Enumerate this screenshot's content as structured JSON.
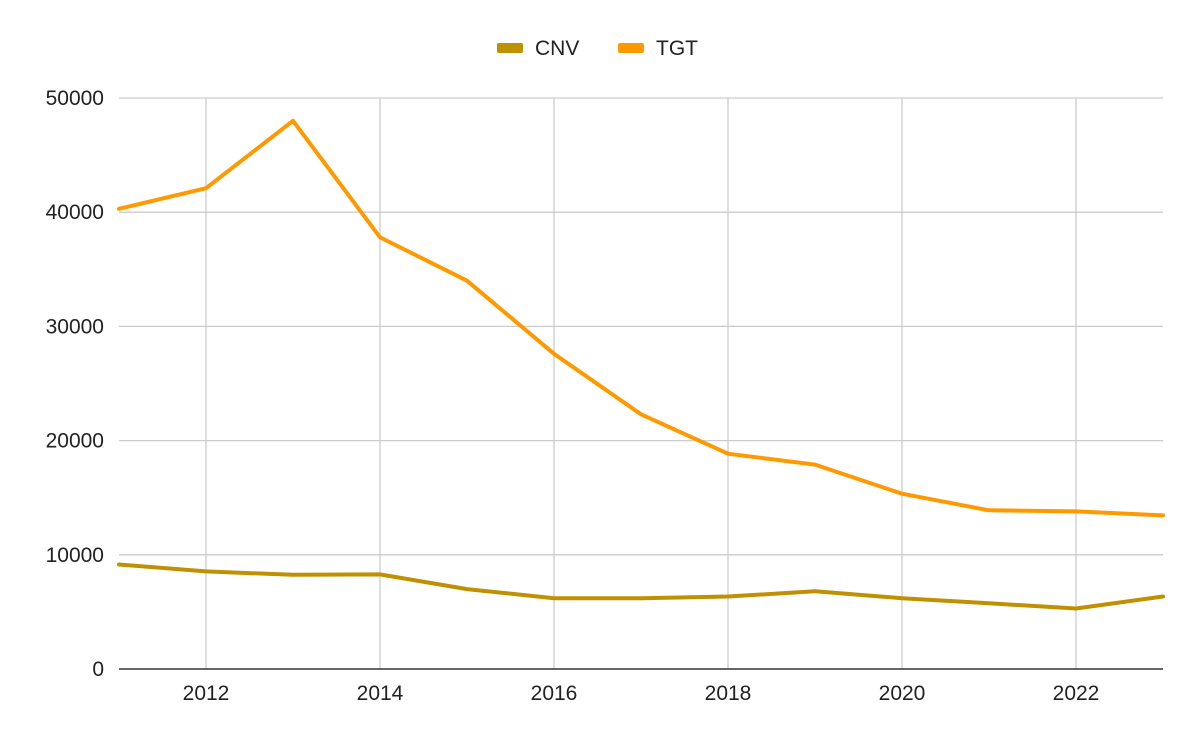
{
  "chart_data": {
    "type": "line",
    "title": "",
    "xlabel": "",
    "ylabel": "",
    "x": [
      2011,
      2012,
      2013,
      2014,
      2015,
      2016,
      2017,
      2018,
      2019,
      2020,
      2021,
      2022,
      2023
    ],
    "xlim": [
      2011,
      2023
    ],
    "xticks": [
      "2012",
      "2014",
      "2016",
      "2018",
      "2020",
      "2022"
    ],
    "ylim": [
      0,
      50000
    ],
    "yticks": [
      "0",
      "10000",
      "20000",
      "30000",
      "40000",
      "50000"
    ],
    "grid": true,
    "legend": "top-center",
    "series": [
      {
        "name": "CNV",
        "color": "#bf9000",
        "values": [
          9150,
          8550,
          8250,
          8280,
          7000,
          6200,
          6200,
          6350,
          6800,
          6200,
          5750,
          5300,
          6350
        ]
      },
      {
        "name": "TGT",
        "color": "#ff9900",
        "values": [
          40300,
          42100,
          48000,
          37800,
          34000,
          27600,
          22300,
          18850,
          17900,
          15350,
          13900,
          13800,
          13450
        ]
      }
    ]
  }
}
